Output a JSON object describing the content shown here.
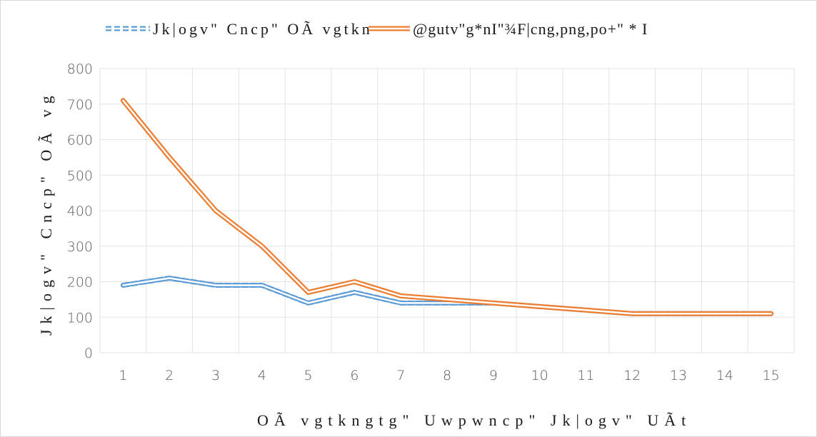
{
  "chart_data": {
    "type": "line",
    "title": "",
    "xlabel": "OÃ  vgtkngtg\" Uwpwncp\" Jk|ogv\" UÃt",
    "ylabel": "Jk|ogv\" Cncp\" OÃ  vg",
    "categories": [
      1,
      2,
      3,
      4,
      5,
      6,
      7,
      8,
      9,
      10,
      11,
      12,
      13,
      14,
      15
    ],
    "ylim": [
      0,
      800
    ],
    "yticks": [
      0,
      100,
      200,
      300,
      400,
      500,
      600,
      700,
      800
    ],
    "grid": "horizontal and vertical",
    "legend_position": "top",
    "series": [
      {
        "name": "Jk|ogv\" Cncp\" OÃ  vgtkn",
        "style": "dashed-double",
        "color": "#5b9bd5",
        "values": [
          190,
          210,
          190,
          190,
          140,
          170,
          140,
          140,
          140,
          130,
          120,
          110,
          110,
          110,
          110
        ]
      },
      {
        "name": "@gutv\"g*nI\"¾F|cng,png,po+\" * I",
        "style": "solid-double",
        "color": "#ed7d31",
        "values": [
          710,
          550,
          400,
          300,
          170,
          200,
          160,
          150,
          140,
          130,
          120,
          110,
          110,
          110,
          110
        ]
      }
    ]
  }
}
